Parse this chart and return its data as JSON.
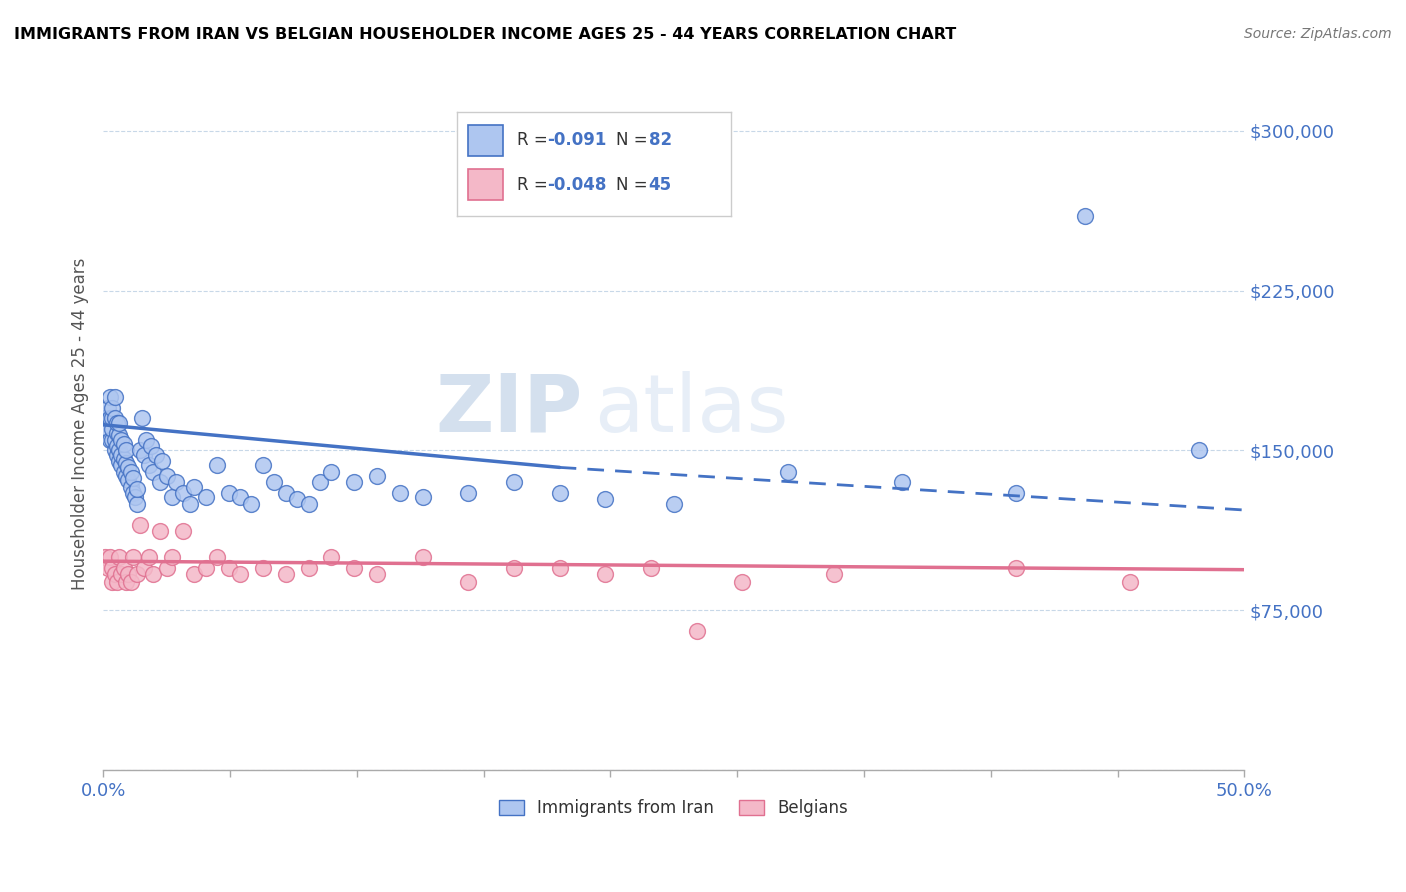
{
  "title": "IMMIGRANTS FROM IRAN VS BELGIAN HOUSEHOLDER INCOME AGES 25 - 44 YEARS CORRELATION CHART",
  "source": "Source: ZipAtlas.com",
  "ylabel": "Householder Income Ages 25 - 44 years",
  "yticks": [
    0,
    75000,
    150000,
    225000,
    300000
  ],
  "ytick_labels": [
    "",
    "$75,000",
    "$150,000",
    "$225,000",
    "$300,000"
  ],
  "xlim": [
    0.0,
    0.5
  ],
  "ylim": [
    0,
    325000
  ],
  "color_iran": "#aec6f0",
  "color_iran_line": "#4472c4",
  "color_belgians": "#f4b8c8",
  "color_belgians_line": "#e07090",
  "color_axis_labels": "#4472c4",
  "color_grid": "#c8d8e8",
  "watermark_zip": "ZIP",
  "watermark_atlas": "atlas",
  "iran_scatter_x": [
    0.001,
    0.002,
    0.002,
    0.003,
    0.003,
    0.003,
    0.004,
    0.004,
    0.004,
    0.004,
    0.005,
    0.005,
    0.005,
    0.005,
    0.006,
    0.006,
    0.006,
    0.006,
    0.007,
    0.007,
    0.007,
    0.007,
    0.008,
    0.008,
    0.008,
    0.009,
    0.009,
    0.009,
    0.01,
    0.01,
    0.01,
    0.011,
    0.011,
    0.012,
    0.012,
    0.013,
    0.013,
    0.014,
    0.015,
    0.015,
    0.016,
    0.017,
    0.018,
    0.019,
    0.02,
    0.021,
    0.022,
    0.023,
    0.025,
    0.026,
    0.028,
    0.03,
    0.032,
    0.035,
    0.038,
    0.04,
    0.045,
    0.05,
    0.055,
    0.06,
    0.065,
    0.07,
    0.075,
    0.08,
    0.085,
    0.09,
    0.095,
    0.1,
    0.11,
    0.12,
    0.13,
    0.14,
    0.16,
    0.18,
    0.2,
    0.22,
    0.25,
    0.3,
    0.35,
    0.4,
    0.43,
    0.48
  ],
  "iran_scatter_y": [
    165000,
    160000,
    170000,
    155000,
    165000,
    175000,
    155000,
    160000,
    165000,
    170000,
    150000,
    155000,
    165000,
    175000,
    148000,
    152000,
    158000,
    163000,
    145000,
    150000,
    157000,
    163000,
    143000,
    148000,
    155000,
    140000,
    146000,
    153000,
    138000,
    144000,
    150000,
    136000,
    142000,
    133000,
    140000,
    130000,
    137000,
    128000,
    125000,
    132000,
    150000,
    165000,
    148000,
    155000,
    143000,
    152000,
    140000,
    148000,
    135000,
    145000,
    138000,
    128000,
    135000,
    130000,
    125000,
    133000,
    128000,
    143000,
    130000,
    128000,
    125000,
    143000,
    135000,
    130000,
    127000,
    125000,
    135000,
    140000,
    135000,
    138000,
    130000,
    128000,
    130000,
    135000,
    130000,
    127000,
    125000,
    140000,
    135000,
    130000,
    260000,
    150000
  ],
  "belgians_scatter_x": [
    0.001,
    0.002,
    0.003,
    0.004,
    0.004,
    0.005,
    0.006,
    0.007,
    0.008,
    0.009,
    0.01,
    0.011,
    0.012,
    0.013,
    0.015,
    0.016,
    0.018,
    0.02,
    0.022,
    0.025,
    0.028,
    0.03,
    0.035,
    0.04,
    0.045,
    0.05,
    0.055,
    0.06,
    0.07,
    0.08,
    0.09,
    0.1,
    0.11,
    0.12,
    0.14,
    0.16,
    0.18,
    0.2,
    0.22,
    0.24,
    0.26,
    0.28,
    0.32,
    0.4,
    0.45
  ],
  "belgians_scatter_y": [
    100000,
    95000,
    100000,
    88000,
    95000,
    92000,
    88000,
    100000,
    92000,
    95000,
    88000,
    92000,
    88000,
    100000,
    92000,
    115000,
    95000,
    100000,
    92000,
    112000,
    95000,
    100000,
    112000,
    92000,
    95000,
    100000,
    95000,
    92000,
    95000,
    92000,
    95000,
    100000,
    95000,
    92000,
    100000,
    88000,
    95000,
    95000,
    92000,
    95000,
    65000,
    88000,
    92000,
    95000,
    88000
  ],
  "iran_trend_x0": 0.0,
  "iran_trend_y0": 162000,
  "iran_trend_x_mid": 0.2,
  "iran_trend_y_mid": 142000,
  "iran_trend_x1": 0.5,
  "iran_trend_y1": 122000,
  "belg_trend_x0": 0.0,
  "belg_trend_y0": 98000,
  "belg_trend_x1": 0.5,
  "belg_trend_y1": 94000
}
